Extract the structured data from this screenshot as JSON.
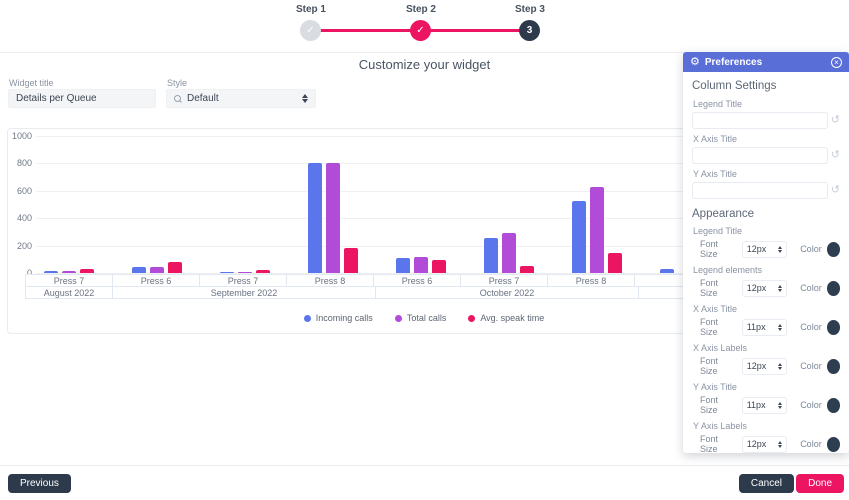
{
  "colors": {
    "accent_pink": "#ec1562",
    "panel_blue": "#5a6ed8",
    "dark_navy": "#2d3a4b"
  },
  "icons": {
    "gear": "⚙",
    "close": "×",
    "reset": "↺"
  },
  "stepper": {
    "steps": [
      {
        "label": "Step 1",
        "glyph": "✓",
        "state": "completed"
      },
      {
        "label": "Step 2",
        "glyph": "✓",
        "state": "active"
      },
      {
        "label": "Step 3",
        "glyph": "3",
        "state": "upcoming"
      }
    ]
  },
  "page": {
    "title": "Customize your widget"
  },
  "form": {
    "widget_title": {
      "label": "Widget title",
      "value": "Details per Queue"
    },
    "style": {
      "label": "Style",
      "value": "Default"
    }
  },
  "chart_data": {
    "type": "bar",
    "title": "",
    "xlabel": "",
    "ylabel": "",
    "ylim": [
      0,
      1000
    ],
    "y_ticks": [
      0,
      200,
      400,
      600,
      800,
      1000
    ],
    "grid": true,
    "legend_position": "bottom",
    "categories": [
      "Press 7",
      "Press 6",
      "Press 7",
      "Press 8",
      "Press 6",
      "Press 7",
      "Press 8",
      ""
    ],
    "month_groups": [
      {
        "label": "August 2022",
        "span": 1
      },
      {
        "label": "September 2022",
        "span": 3
      },
      {
        "label": "October 2022",
        "span": 3
      },
      {
        "label": "",
        "span": 1
      }
    ],
    "series": [
      {
        "name": "Incoming calls",
        "color": "#5b76ed",
        "values": [
          12,
          45,
          8,
          800,
          112,
          255,
          523,
          30
        ]
      },
      {
        "name": "Total calls",
        "color": "#b24bd8",
        "values": [
          15,
          45,
          10,
          805,
          115,
          292,
          628,
          null
        ]
      },
      {
        "name": "Avg. speak time",
        "color": "#ec1562",
        "values": [
          32,
          78,
          22,
          185,
          95,
          50,
          148,
          null
        ]
      }
    ]
  },
  "preferences": {
    "title": "Preferences",
    "column_settings": {
      "heading": "Column Settings",
      "fields": [
        {
          "label": "Legend Title",
          "value": ""
        },
        {
          "label": "X Axis Title",
          "value": ""
        },
        {
          "label": "Y Axis Title",
          "value": ""
        }
      ]
    },
    "appearance": {
      "heading": "Appearance",
      "font_size_label": "Font Size",
      "color_label": "Color",
      "swatch_color": "#2d3e50",
      "rows": [
        {
          "label": "Legend Title",
          "font_size": "12px"
        },
        {
          "label": "Legend elements",
          "font_size": "12px"
        },
        {
          "label": "X Axis Title",
          "font_size": "11px"
        },
        {
          "label": "X Axis Labels",
          "font_size": "12px"
        },
        {
          "label": "Y Axis Title",
          "font_size": "11px"
        },
        {
          "label": "Y Axis Labels",
          "font_size": "12px"
        }
      ]
    }
  },
  "footer": {
    "previous_label": "Previous",
    "cancel_label": "Cancel",
    "done_label": "Done"
  }
}
